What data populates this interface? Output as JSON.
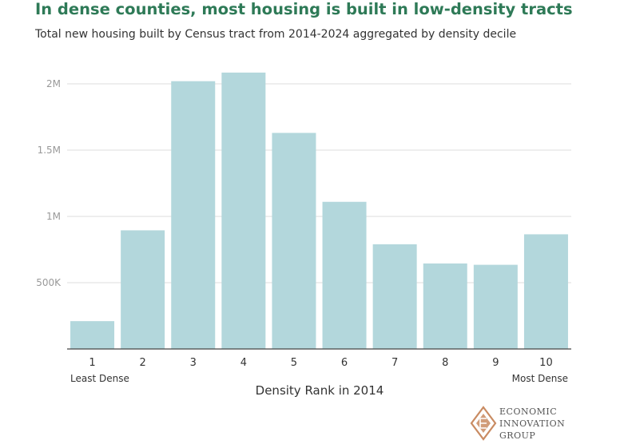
{
  "header": {
    "title": "In dense counties, most housing is built in low-density tracts",
    "subtitle": "Total new housing built by Census tract from 2014-2024 aggregated by density decile"
  },
  "chart_data": {
    "type": "bar",
    "categories": [
      "1",
      "2",
      "3",
      "4",
      "5",
      "6",
      "7",
      "8",
      "9",
      "10"
    ],
    "values": [
      210000,
      895000,
      2020000,
      2085000,
      1630000,
      1110000,
      790000,
      645000,
      635000,
      865000
    ],
    "xlabel": "Density Rank in 2014",
    "ylabel": "",
    "ylim": [
      0,
      2000000
    ],
    "yticks": [
      {
        "value": 500000,
        "label": "500K"
      },
      {
        "value": 1000000,
        "label": "1M"
      },
      {
        "value": 1500000,
        "label": "1.5M"
      },
      {
        "value": 2000000,
        "label": "2M"
      }
    ],
    "annotations": {
      "least": "Least Dense",
      "most": "Most Dense"
    },
    "bar_color": "#b3d7dc",
    "grid": true,
    "legend": "none"
  },
  "logo": {
    "lines": [
      "ECONOMIC",
      "INNOVATION",
      "GROUP"
    ],
    "color": "#c98b62"
  }
}
